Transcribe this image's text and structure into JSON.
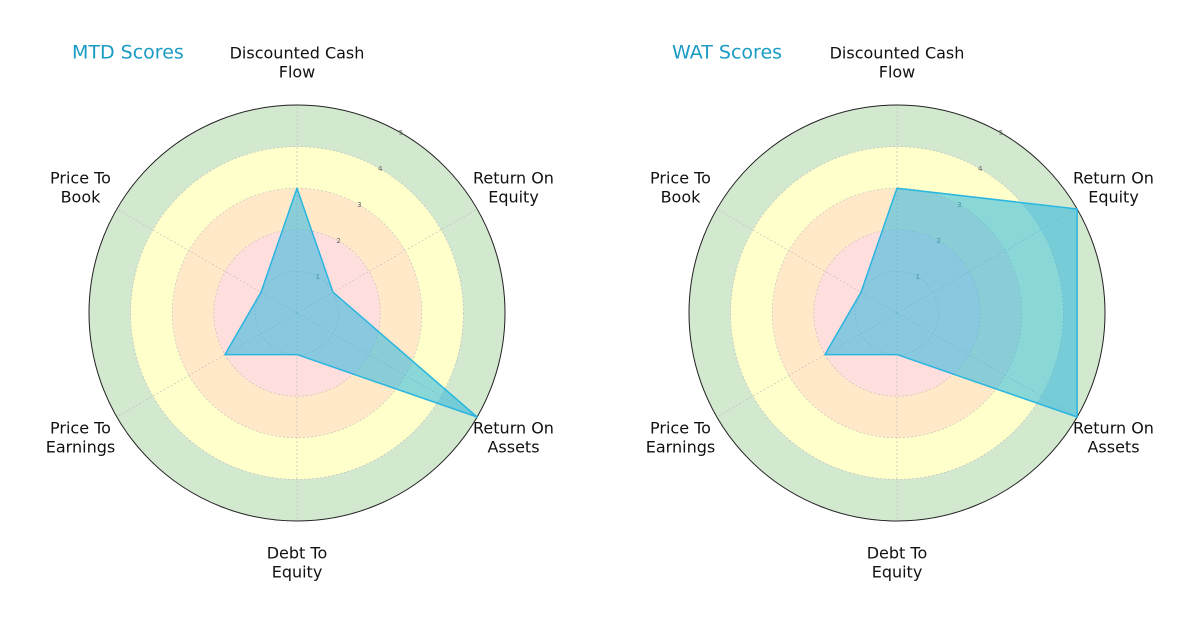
{
  "chart_data": [
    {
      "type": "radar",
      "title": "MTD Scores",
      "categories": [
        "Discounted Cash\nFlow",
        "Return On\nEquity",
        "Return On\nAssets",
        "Debt To\nEquity",
        "Price To\nEarnings",
        "Price To\nBook"
      ],
      "values": [
        3,
        1,
        5,
        1,
        2,
        1
      ],
      "color": "#29b6e0",
      "rlim": [
        0,
        5
      ],
      "rticks": [
        1,
        2,
        3,
        4,
        5
      ],
      "ring_colors": [
        "#ffdede",
        "#ffdede",
        "#ffe9c9",
        "#ffffcc",
        "#d2e8cf"
      ],
      "grid": true
    },
    {
      "type": "radar",
      "title": "WAT Scores",
      "categories": [
        "Discounted Cash\nFlow",
        "Return On\nEquity",
        "Return On\nAssets",
        "Debt To\nEquity",
        "Price To\nEarnings",
        "Price To\nBook"
      ],
      "values": [
        3,
        5,
        5,
        1,
        2,
        1
      ],
      "color": "#29b6e0",
      "rlim": [
        0,
        5
      ],
      "rticks": [
        1,
        2,
        3,
        4,
        5
      ],
      "ring_colors": [
        "#ffdede",
        "#ffdede",
        "#ffe9c9",
        "#ffffcc",
        "#d2e8cf"
      ],
      "grid": true
    }
  ]
}
